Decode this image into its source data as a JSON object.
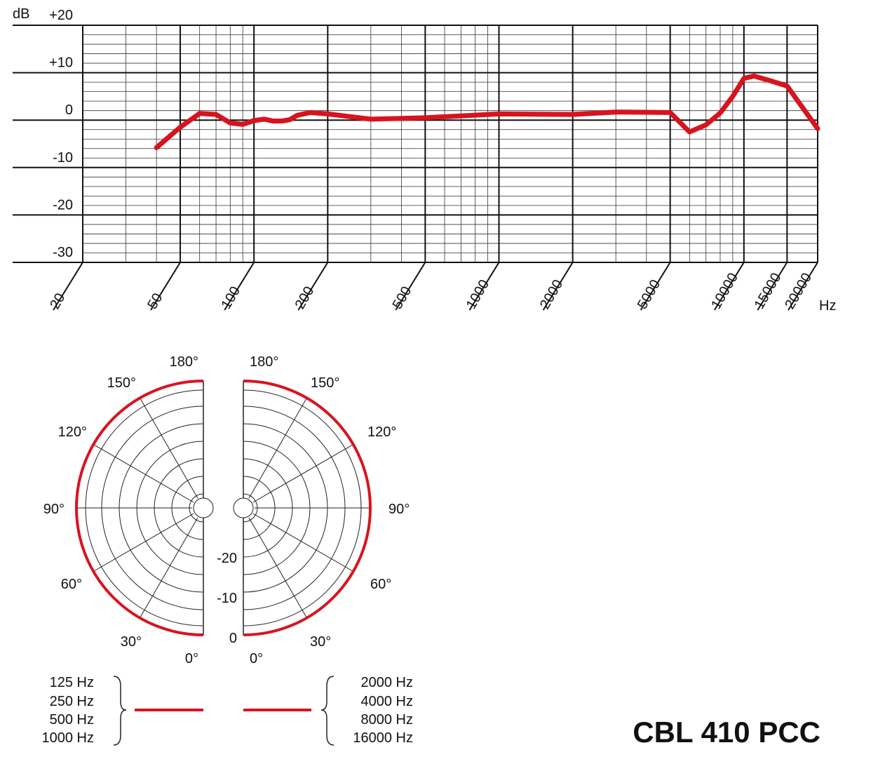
{
  "model_name": "CBL 410 PCC",
  "chart_data": [
    {
      "type": "line",
      "title": "",
      "ylabel": "dB",
      "xlabel": "Hz",
      "x_scale": "log",
      "xlim": [
        20,
        20000
      ],
      "ylim": [
        -30,
        20
      ],
      "grid": true,
      "y_ticks": [
        {
          "value": 20,
          "label": "+20"
        },
        {
          "value": 10,
          "label": "+10"
        },
        {
          "value": 0,
          "label": "0"
        },
        {
          "value": -10,
          "label": "-10"
        },
        {
          "value": -20,
          "label": "-20"
        },
        {
          "value": -30,
          "label": "-30"
        }
      ],
      "x_ticks": [
        {
          "value": 20,
          "label": "20"
        },
        {
          "value": 50,
          "label": "50"
        },
        {
          "value": 100,
          "label": "100"
        },
        {
          "value": 200,
          "label": "200"
        },
        {
          "value": 500,
          "label": "500"
        },
        {
          "value": 1000,
          "label": "1000"
        },
        {
          "value": 2000,
          "label": "2000"
        },
        {
          "value": 5000,
          "label": "5000"
        },
        {
          "value": 10000,
          "label": "10000"
        },
        {
          "value": 15000,
          "label": "15000"
        },
        {
          "value": 20000,
          "label": "20000"
        }
      ],
      "series": [
        {
          "color": "#d7141e",
          "x": [
            40,
            50,
            60,
            70,
            80,
            90,
            100,
            110,
            120,
            130,
            140,
            150,
            170,
            200,
            300,
            500,
            1000,
            2000,
            3000,
            5000,
            6000,
            7000,
            8000,
            9000,
            10000,
            11000,
            13000,
            15000,
            20000
          ],
          "y": [
            -5.8,
            -1.5,
            1.4,
            1.2,
            -0.6,
            -0.9,
            -0.1,
            0.2,
            -0.2,
            -0.2,
            0.1,
            1.0,
            1.6,
            1.3,
            0.2,
            0.5,
            1.3,
            1.2,
            1.7,
            1.6,
            -2.5,
            -1.0,
            1.5,
            5.0,
            8.8,
            9.3,
            8.2,
            7.2,
            -1.8
          ]
        }
      ]
    },
    {
      "type": "polar",
      "title": "",
      "angle_labels_left": [
        "180°",
        "150°",
        "120°",
        "90°",
        "60°",
        "30°",
        "0°"
      ],
      "angle_labels_right": [
        "180°",
        "150°",
        "120°",
        "90°",
        "60°",
        "30°",
        "0°"
      ],
      "radial_labels": [
        "-20",
        "-10",
        "0"
      ],
      "series": [
        {
          "side": "left",
          "color": "#d7141e",
          "legend": [
            "125 Hz",
            "250 Hz",
            "500 Hz",
            "1000 Hz"
          ],
          "level_db": [
            0,
            0,
            0,
            0,
            0,
            0,
            0
          ]
        },
        {
          "side": "right",
          "color": "#d7141e",
          "legend": [
            "2000 Hz",
            "4000 Hz",
            "8000 Hz",
            "16000 Hz"
          ],
          "level_db": [
            0,
            0,
            0,
            0,
            0,
            0,
            0
          ]
        }
      ]
    }
  ]
}
